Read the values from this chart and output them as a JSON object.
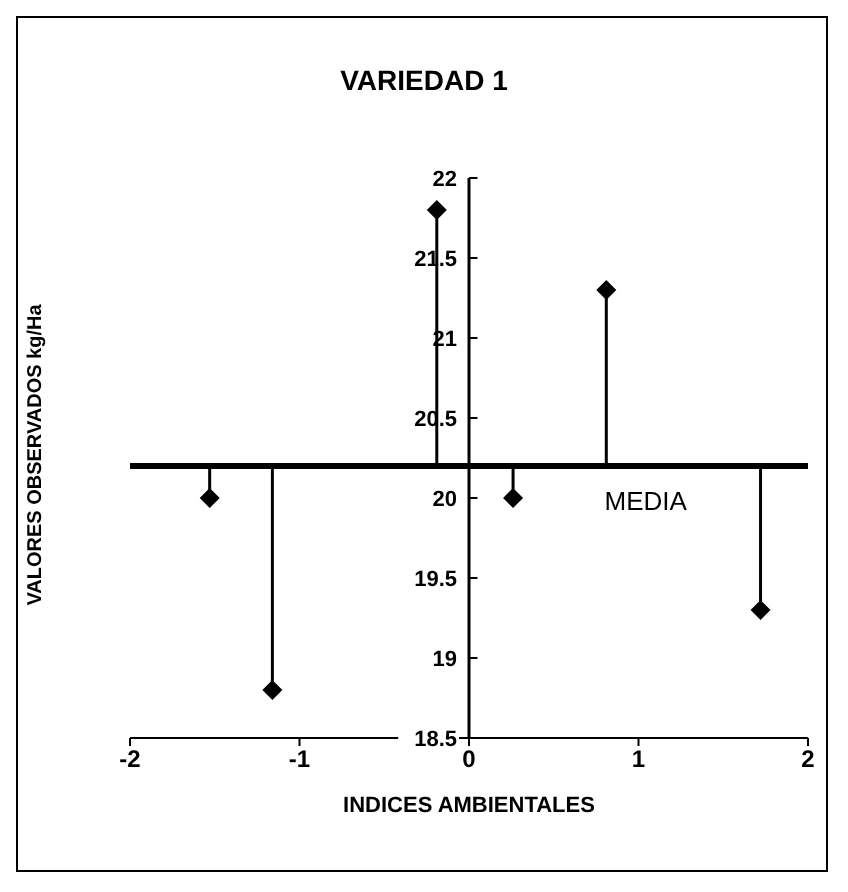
{
  "chart_data": {
    "type": "scatter",
    "title": "VARIEDAD 1",
    "xlabel": "INDICES AMBIENTALES",
    "ylabel": "VALORES OBSERVADOS kg/Ha",
    "x": [
      -1.53,
      -1.16,
      -0.19,
      0.26,
      0.81,
      1.72
    ],
    "values": [
      20.0,
      18.8,
      21.8,
      20.0,
      21.3,
      19.3
    ],
    "errors": [
      [
        20.0,
        20.2
      ],
      [
        18.8,
        20.2
      ],
      [
        20.2,
        21.8
      ],
      [
        20.0,
        20.2
      ],
      [
        20.2,
        21.3
      ],
      [
        19.3,
        20.2
      ]
    ],
    "color": "#000000",
    "marker": "diamond",
    "grid": false,
    "xlim": [
      -2,
      2
    ],
    "xticks": [
      -2,
      -1,
      0,
      1,
      2
    ],
    "ylim": [
      18.5,
      22
    ],
    "yticks": [
      18.5,
      19,
      19.5,
      20,
      20.5,
      21,
      21.5,
      22
    ],
    "ref_lines": [
      {
        "axis": "y",
        "value": 20.2,
        "label": "MEDIA",
        "color": "#000000"
      }
    ]
  }
}
